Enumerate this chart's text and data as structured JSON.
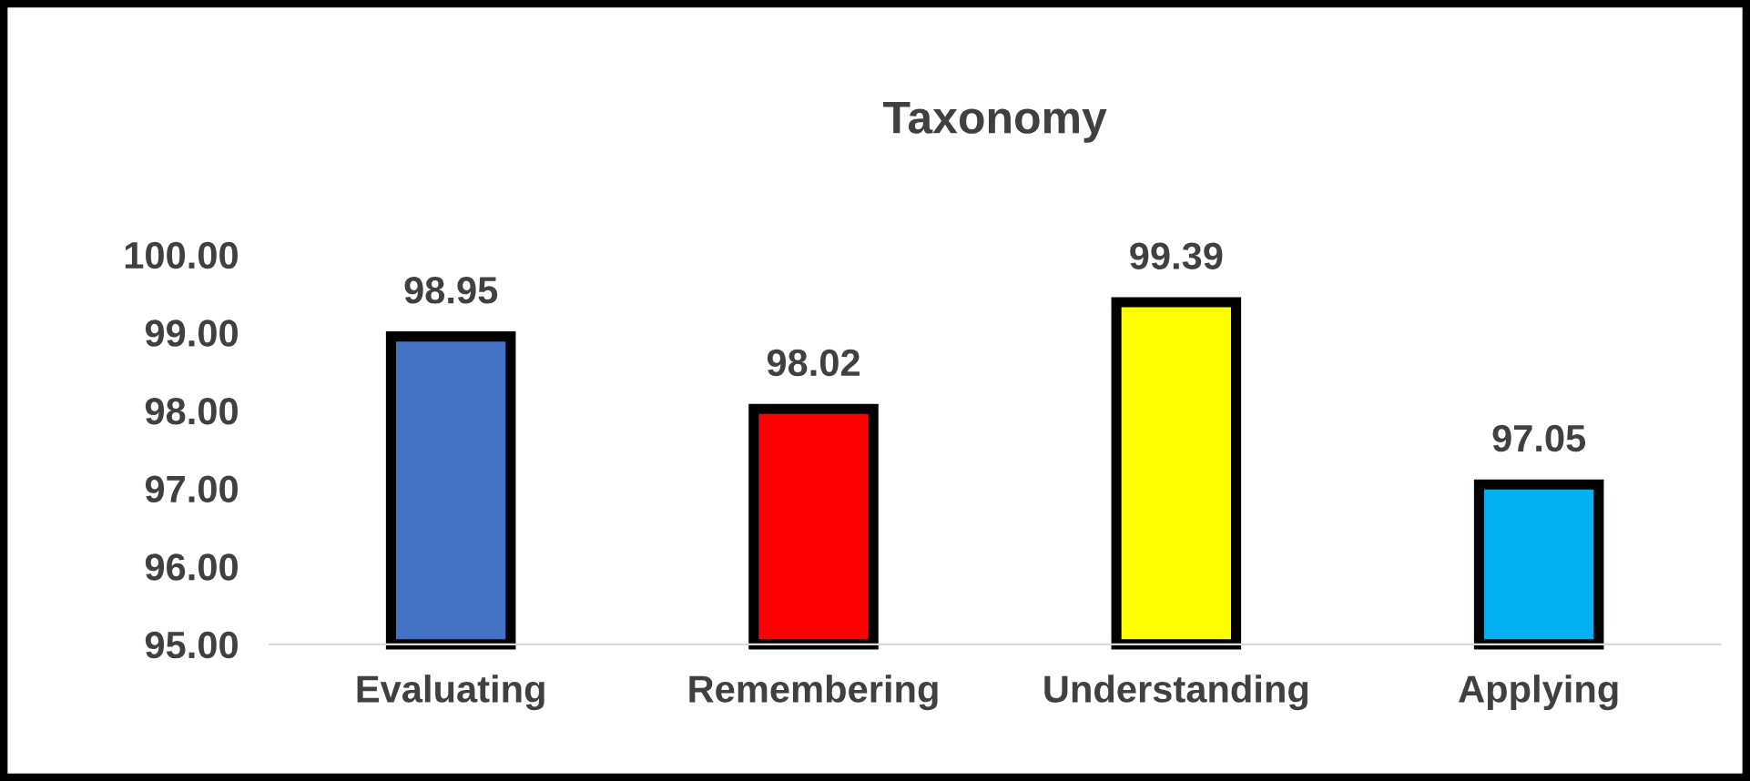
{
  "chart_data": {
    "type": "bar",
    "title": "Taxonomy",
    "categories": [
      "Evaluating",
      "Remembering",
      "Understanding",
      "Applying"
    ],
    "values": [
      98.95,
      98.02,
      99.39,
      97.05
    ],
    "colors": [
      "#4472c4",
      "#ff0000",
      "#ffff00",
      "#00b0f0"
    ],
    "ylim": [
      95,
      100
    ],
    "yticks": [
      {
        "value": 95,
        "label": "95.00"
      },
      {
        "value": 96,
        "label": "96.00"
      },
      {
        "value": 97,
        "label": "97.00"
      },
      {
        "value": 98,
        "label": "98.00"
      },
      {
        "value": 99,
        "label": "99.00"
      },
      {
        "value": 100,
        "label": "100.00"
      }
    ],
    "data_labels": true,
    "grid": false,
    "legend": false
  }
}
